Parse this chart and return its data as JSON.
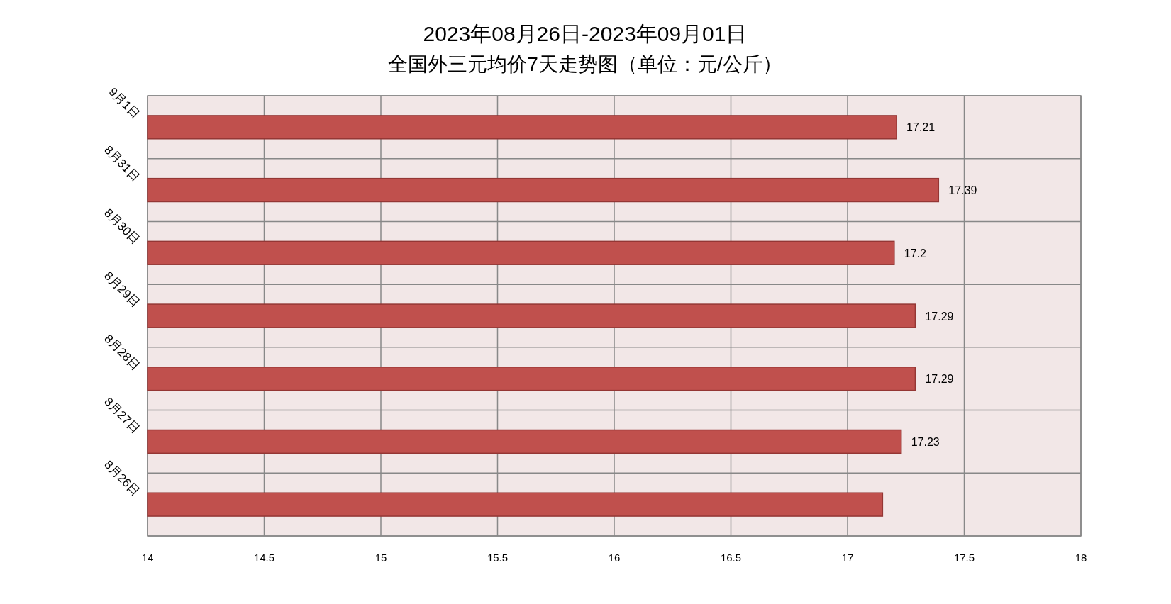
{
  "chart_data": {
    "type": "bar",
    "orientation": "horizontal",
    "title": "2023年08月26日-2023年09月01日",
    "subtitle": "全国外三元均价7天走势图（单位：元/公斤）",
    "categories": [
      "9月1日",
      "8月31日",
      "8月30日",
      "8月29日",
      "8月28日",
      "8月27日",
      "8月26日"
    ],
    "values": [
      17.21,
      17.39,
      17.2,
      17.29,
      17.29,
      17.23,
      17.15
    ],
    "value_labels": [
      "17.21",
      "17.39",
      "17.2",
      "17.29",
      "17.29",
      "17.23",
      null
    ],
    "color": "#c0504d",
    "xlim": [
      14,
      18
    ],
    "xticks": [
      14,
      14.5,
      15,
      15.5,
      16,
      16.5,
      17,
      17.5,
      18
    ],
    "grid": true
  }
}
